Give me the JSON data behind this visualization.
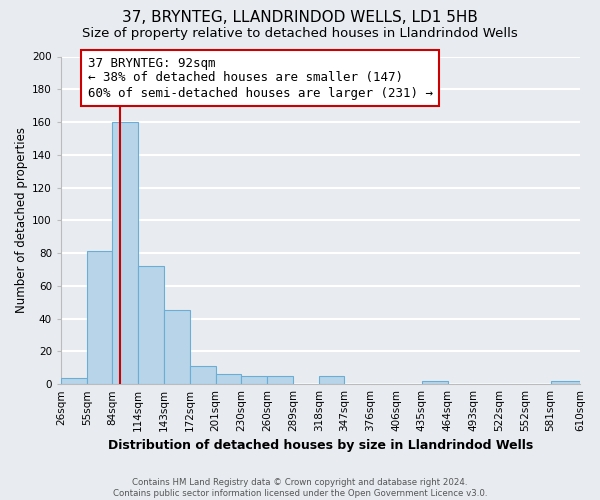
{
  "title": "37, BRYNTEG, LLANDRINDOD WELLS, LD1 5HB",
  "subtitle": "Size of property relative to detached houses in Llandrindod Wells",
  "xlabel": "Distribution of detached houses by size in Llandrindod Wells",
  "ylabel": "Number of detached properties",
  "bin_edges": [
    26,
    55,
    84,
    113,
    142,
    171,
    200,
    229,
    258,
    287,
    316,
    345,
    374,
    403,
    432,
    461,
    490,
    519,
    548,
    577,
    610
  ],
  "bin_labels": [
    "26sqm",
    "55sqm",
    "84sqm",
    "114sqm",
    "143sqm",
    "172sqm",
    "201sqm",
    "230sqm",
    "260sqm",
    "289sqm",
    "318sqm",
    "347sqm",
    "376sqm",
    "406sqm",
    "435sqm",
    "464sqm",
    "493sqm",
    "522sqm",
    "552sqm",
    "581sqm",
    "610sqm"
  ],
  "bar_heights": [
    4,
    81,
    160,
    72,
    45,
    11,
    6,
    5,
    5,
    0,
    5,
    0,
    0,
    0,
    2,
    0,
    0,
    0,
    0,
    2
  ],
  "bar_color": "#b8d4e8",
  "bar_edge_color": "#6aaed6",
  "property_line_x": 92,
  "property_line_color": "#cc0000",
  "annotation_line1": "37 BRYNTEG: 92sqm",
  "annotation_line2": "← 38% of detached houses are smaller (147)",
  "annotation_line3": "60% of semi-detached houses are larger (231) →",
  "annotation_box_edge_color": "#cc0000",
  "ylim": [
    0,
    200
  ],
  "yticks": [
    0,
    20,
    40,
    60,
    80,
    100,
    120,
    140,
    160,
    180,
    200
  ],
  "footer_text": "Contains HM Land Registry data © Crown copyright and database right 2024.\nContains public sector information licensed under the Open Government Licence v3.0.",
  "bg_color": "#e8ecf0",
  "grid_color": "#ffffff",
  "title_fontsize": 11,
  "subtitle_fontsize": 9.5,
  "annotation_fontsize": 9,
  "ylabel_fontsize": 8.5,
  "xlabel_fontsize": 9,
  "tick_fontsize": 7.5
}
